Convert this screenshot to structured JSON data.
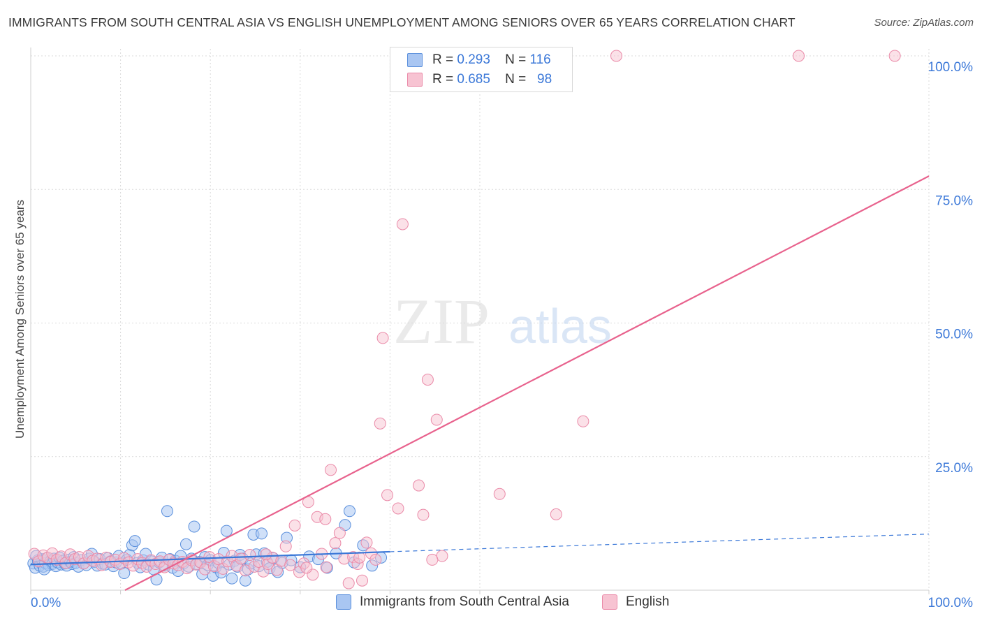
{
  "title": "IMMIGRANTS FROM SOUTH CENTRAL ASIA VS ENGLISH UNEMPLOYMENT AMONG SENIORS OVER 65 YEARS CORRELATION CHART",
  "source": "Source: ZipAtlas.com",
  "legend": {
    "series1": {
      "r_label": "R =",
      "r_value": "0.293",
      "n_label": "N =",
      "n_value": "116"
    },
    "series2": {
      "r_label": "R =",
      "r_value": "0.685",
      "n_label": "N =",
      "n_value": "98"
    }
  },
  "watermark": {
    "zip": "ZIP",
    "atlas": "atlas"
  },
  "colors": {
    "blue_fill": "#a9c6f2",
    "blue_stroke": "#5a8fdc",
    "blue_line": "#3b78d8",
    "pink_fill": "#f7c3d2",
    "pink_stroke": "#ea8aa8",
    "pink_line": "#e8628d",
    "grid": "#d9d9d9",
    "axis_text": "#3b78d8"
  },
  "chart_data": {
    "type": "scatter",
    "title": "IMMIGRANTS FROM SOUTH CENTRAL ASIA VS ENGLISH UNEMPLOYMENT AMONG SENIORS OVER 65 YEARS CORRELATION CHART",
    "xlabel": "",
    "ylabel": "Unemployment Among Seniors over 65 years",
    "xlim": [
      0,
      100
    ],
    "ylim": [
      0,
      100
    ],
    "x_tick_labels": [
      "0.0%",
      "100.0%"
    ],
    "y_tick_values": [
      25,
      50,
      75,
      100
    ],
    "y_tick_labels": [
      "25.0%",
      "50.0%",
      "75.0%",
      "100.0%"
    ],
    "grid": true,
    "series": [
      {
        "name": "Immigrants from South Central Asia",
        "color": "#a9c6f2",
        "r": 0.293,
        "n": 116,
        "trend": {
          "x0": 0,
          "y0": 4.8,
          "x1": 40,
          "y1": 7.2,
          "extend_to_x": 100,
          "extend_y": 10.5
        },
        "points": [
          [
            0.3,
            5
          ],
          [
            0.5,
            4.2
          ],
          [
            0.8,
            5.6
          ],
          [
            1,
            4.6
          ],
          [
            1.2,
            5.8
          ],
          [
            1.4,
            4.4
          ],
          [
            1.6,
            5.1
          ],
          [
            1.8,
            6
          ],
          [
            2,
            4.7
          ],
          [
            2.2,
            5.4
          ],
          [
            2.4,
            4.9
          ],
          [
            2.6,
            5.9
          ],
          [
            2.8,
            4.5
          ],
          [
            3,
            5.2
          ],
          [
            3.2,
            6.1
          ],
          [
            3.4,
            4.8
          ],
          [
            3.6,
            5.5
          ],
          [
            3.8,
            5
          ],
          [
            4,
            4.6
          ],
          [
            4.2,
            5.7
          ],
          [
            4.4,
            5.3
          ],
          [
            4.6,
            4.9
          ],
          [
            4.8,
            6.2
          ],
          [
            5,
            5.1
          ],
          [
            5.3,
            4.4
          ],
          [
            5.6,
            5.6
          ],
          [
            5.9,
            5
          ],
          [
            6.2,
            4.7
          ],
          [
            6.5,
            5.9
          ],
          [
            6.8,
            6.8
          ],
          [
            7.1,
            5.3
          ],
          [
            7.4,
            4.6
          ],
          [
            7.7,
            5.8
          ],
          [
            8,
            5
          ],
          [
            8.3,
            4.8
          ],
          [
            8.6,
            6
          ],
          [
            8.9,
            5.4
          ],
          [
            9.2,
            4.5
          ],
          [
            9.5,
            5.2
          ],
          [
            9.8,
            6.4
          ],
          [
            10.1,
            5
          ],
          [
            10.4,
            3.2
          ],
          [
            10.7,
            5.7
          ],
          [
            11,
            6.6
          ],
          [
            11.3,
            8.4
          ],
          [
            11.6,
            9.2
          ],
          [
            11.9,
            5.1
          ],
          [
            12.2,
            4.3
          ],
          [
            12.5,
            5.6
          ],
          [
            12.8,
            6.8
          ],
          [
            13.1,
            4.8
          ],
          [
            13.4,
            5.4
          ],
          [
            13.7,
            3.9
          ],
          [
            14,
            2
          ],
          [
            14.3,
            5.2
          ],
          [
            14.6,
            6.1
          ],
          [
            14.9,
            4.6
          ],
          [
            15.2,
            14.8
          ],
          [
            15.5,
            5.8
          ],
          [
            15.8,
            4.2
          ],
          [
            16.1,
            5.5
          ],
          [
            16.4,
            3.6
          ],
          [
            16.7,
            6.4
          ],
          [
            17,
            5
          ],
          [
            17.3,
            8.6
          ],
          [
            17.6,
            4.4
          ],
          [
            17.9,
            5.9
          ],
          [
            18.2,
            11.9
          ],
          [
            18.5,
            4.9
          ],
          [
            18.8,
            5.3
          ],
          [
            19.1,
            3
          ],
          [
            19.4,
            6.2
          ],
          [
            19.7,
            4.7
          ],
          [
            20,
            5.6
          ],
          [
            20.3,
            2.7
          ],
          [
            20.6,
            4.3
          ],
          [
            20.9,
            5.1
          ],
          [
            21.2,
            3.3
          ],
          [
            21.5,
            7
          ],
          [
            21.8,
            11.1
          ],
          [
            22.1,
            4.8
          ],
          [
            22.4,
            2.2
          ],
          [
            22.7,
            5.5
          ],
          [
            23,
            4.4
          ],
          [
            23.3,
            6.6
          ],
          [
            23.6,
            5.9
          ],
          [
            23.9,
            1.8
          ],
          [
            24.2,
            3.9
          ],
          [
            24.5,
            5
          ],
          [
            24.8,
            10.4
          ],
          [
            25.1,
            6.7
          ],
          [
            25.4,
            4.5
          ],
          [
            25.7,
            10.6
          ],
          [
            26,
            6.9
          ],
          [
            26.3,
            5.3
          ],
          [
            26.6,
            4.1
          ],
          [
            27,
            6
          ],
          [
            27.5,
            3.4
          ],
          [
            28,
            5.1
          ],
          [
            28.5,
            9.8
          ],
          [
            29,
            5.6
          ],
          [
            30,
            4.3
          ],
          [
            31,
            6.3
          ],
          [
            32,
            5.8
          ],
          [
            33,
            4.2
          ],
          [
            34,
            6.9
          ],
          [
            35,
            12.2
          ],
          [
            35.5,
            14.8
          ],
          [
            36,
            5.2
          ],
          [
            37,
            8.4
          ],
          [
            38,
            4.6
          ],
          [
            39,
            6.1
          ],
          [
            0.6,
            6.4
          ],
          [
            1.5,
            3.9
          ]
        ]
      },
      {
        "name": "English",
        "color": "#f7c3d2",
        "r": 0.685,
        "n": 98,
        "trend": {
          "x0": 10.5,
          "y0": 0,
          "x1": 100,
          "y1": 77.5
        },
        "points": [
          [
            0.4,
            6.8
          ],
          [
            0.9,
            5.4
          ],
          [
            1.4,
            6.5
          ],
          [
            1.9,
            6.1
          ],
          [
            2.4,
            6.9
          ],
          [
            2.9,
            5.7
          ],
          [
            3.4,
            6.3
          ],
          [
            3.9,
            5.1
          ],
          [
            4.4,
            6.7
          ],
          [
            4.9,
            5.8
          ],
          [
            5.4,
            6.2
          ],
          [
            5.9,
            5
          ],
          [
            6.4,
            6.4
          ],
          [
            6.9,
            5.5
          ],
          [
            7.4,
            5.9
          ],
          [
            7.9,
            4.7
          ],
          [
            8.4,
            6.1
          ],
          [
            8.9,
            5.3
          ],
          [
            9.4,
            5.7
          ],
          [
            9.9,
            4.9
          ],
          [
            10.4,
            6
          ],
          [
            10.9,
            5.2
          ],
          [
            11.4,
            4.6
          ],
          [
            11.9,
            5.8
          ],
          [
            12.4,
            5.1
          ],
          [
            12.9,
            4.4
          ],
          [
            13.4,
            5.6
          ],
          [
            13.9,
            4.9
          ],
          [
            14.4,
            5.4
          ],
          [
            14.9,
            4.3
          ],
          [
            15.4,
            5.7
          ],
          [
            15.9,
            5
          ],
          [
            16.4,
            4.7
          ],
          [
            16.9,
            5.3
          ],
          [
            17.4,
            4.1
          ],
          [
            17.9,
            5.6
          ],
          [
            18.4,
            4.8
          ],
          [
            18.9,
            5.2
          ],
          [
            19.4,
            3.9
          ],
          [
            19.9,
            6.2
          ],
          [
            20.4,
            4.5
          ],
          [
            20.9,
            5.8
          ],
          [
            21.4,
            4
          ],
          [
            21.9,
            5.4
          ],
          [
            22.4,
            6.4
          ],
          [
            22.9,
            4.6
          ],
          [
            23.4,
            5.9
          ],
          [
            23.9,
            3.7
          ],
          [
            24.4,
            6.6
          ],
          [
            24.9,
            4.4
          ],
          [
            25.4,
            5.3
          ],
          [
            25.9,
            3.5
          ],
          [
            26.4,
            4.9
          ],
          [
            26.9,
            6.1
          ],
          [
            27.4,
            3.8
          ],
          [
            27.9,
            5.5
          ],
          [
            28.4,
            8.2
          ],
          [
            28.9,
            4.7
          ],
          [
            29.4,
            12.1
          ],
          [
            29.9,
            3.4
          ],
          [
            30.4,
            5
          ],
          [
            30.9,
            16.5
          ],
          [
            31.4,
            2.9
          ],
          [
            31.9,
            13.7
          ],
          [
            32.4,
            6.8
          ],
          [
            32.9,
            4.3
          ],
          [
            33.4,
            22.5
          ],
          [
            33.9,
            8.8
          ],
          [
            34.4,
            10.7
          ],
          [
            34.9,
            5.9
          ],
          [
            35.4,
            1.3
          ],
          [
            35.9,
            6.2
          ],
          [
            36.4,
            4.9
          ],
          [
            36.9,
            1.8
          ],
          [
            37.4,
            8.9
          ],
          [
            37.9,
            6.9
          ],
          [
            38.4,
            5.7
          ],
          [
            39.2,
            47.2
          ],
          [
            39.7,
            17.8
          ],
          [
            40.9,
            15.3
          ],
          [
            41.4,
            68.5
          ],
          [
            43.2,
            19.6
          ],
          [
            43.7,
            14.1
          ],
          [
            44.2,
            39.4
          ],
          [
            45.2,
            31.9
          ],
          [
            52.2,
            18
          ],
          [
            58.5,
            14.2
          ],
          [
            61.5,
            31.6
          ],
          [
            65.2,
            100
          ],
          [
            85.5,
            100
          ],
          [
            96.2,
            100
          ],
          [
            38.9,
            31.2
          ],
          [
            36.6,
            6.1
          ],
          [
            26.2,
            6.7
          ],
          [
            30.7,
            4.2
          ],
          [
            45.8,
            6.4
          ],
          [
            44.7,
            5.7
          ],
          [
            32.8,
            13.3
          ]
        ]
      }
    ]
  }
}
